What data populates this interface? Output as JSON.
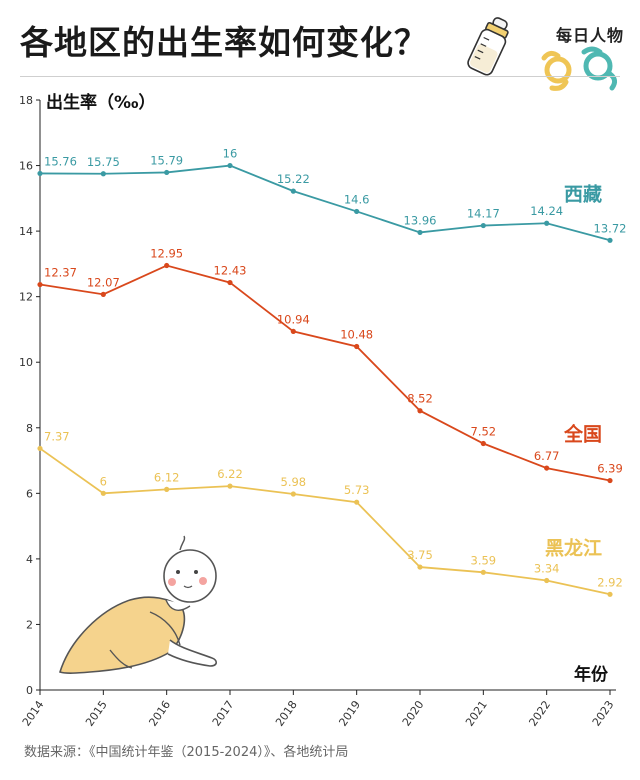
{
  "header": {
    "title": "各地区的出生率如何变化？",
    "brand": "每日人物"
  },
  "footer": {
    "source": "数据来源：《中国统计年鉴（2015-2024）》、各地统计局"
  },
  "chart_data": {
    "type": "line",
    "title": "各地区的出生率如何变化？",
    "ylabel": "出生率（‰）",
    "xlabel": "年份",
    "ylim": [
      0,
      18
    ],
    "yticks": [
      0,
      2,
      4,
      6,
      8,
      10,
      12,
      14,
      16,
      18
    ],
    "grid": false,
    "x": [
      "2014",
      "2015",
      "2016",
      "2017",
      "2018",
      "2019",
      "2020",
      "2021",
      "2022",
      "2023"
    ],
    "series": [
      {
        "name": "西藏",
        "color": "#3a9aa3",
        "values": [
          15.76,
          15.75,
          15.79,
          16,
          15.22,
          14.6,
          13.96,
          14.17,
          14.24,
          13.72
        ],
        "labels": [
          "15.76",
          "15.75",
          "15.79",
          "16",
          "15.22",
          "14.6",
          "13.96",
          "14.17",
          "14.24",
          "13.72"
        ]
      },
      {
        "name": "全国",
        "color": "#d9481c",
        "values": [
          12.37,
          12.07,
          12.95,
          12.43,
          10.94,
          10.48,
          8.52,
          7.52,
          6.77,
          6.39
        ],
        "labels": [
          "12.37",
          "12.07",
          "12.95",
          "12.43",
          "10.94",
          "10.48",
          "8.52",
          "7.52",
          "6.77",
          "6.39"
        ]
      },
      {
        "name": "黑龙江",
        "color": "#ebc255",
        "values": [
          7.37,
          6,
          6.12,
          6.22,
          5.98,
          5.73,
          3.75,
          3.59,
          3.34,
          2.92
        ],
        "labels": [
          "7.37",
          "6",
          "6.12",
          "6.22",
          "5.98",
          "5.73",
          "3.75",
          "3.59",
          "3.34",
          "2.92"
        ]
      }
    ]
  }
}
